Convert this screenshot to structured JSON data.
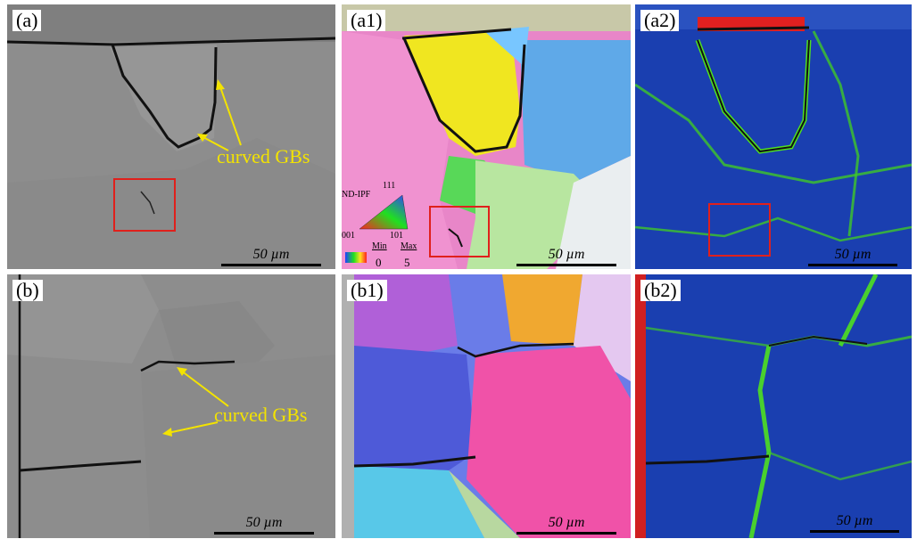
{
  "panels": [
    {
      "id": "a",
      "label": "(a)",
      "type": "sem",
      "scale_label": "50 µm",
      "annotation": "curved GBs",
      "has_box": true
    },
    {
      "id": "a1",
      "label": "(a1)",
      "type": "ipf",
      "scale_label": "50 µm",
      "has_box": true
    },
    {
      "id": "a2",
      "label": "(a2)",
      "type": "kam",
      "scale_label": "50 µm",
      "has_box": true
    },
    {
      "id": "b",
      "label": "(b)",
      "type": "sem",
      "scale_label": "50 µm",
      "annotation": "curved GBs"
    },
    {
      "id": "b1",
      "label": "(b1)",
      "type": "ipf",
      "scale_label": "50 µm"
    },
    {
      "id": "b2",
      "label": "(b2)",
      "type": "kam",
      "scale_label": "50 µm"
    }
  ],
  "legend": {
    "title": "ND-IPF",
    "corner_top": "111",
    "corner_left": "001",
    "corner_right": "101",
    "min_label": "Min",
    "max_label": "Max",
    "min_value": "0",
    "max_value": "5"
  },
  "colors": {
    "annotation": "#f3e300",
    "box": "#e0201c",
    "sem_bg": "#8d8d8d",
    "kam_bg": "#1a3fb0",
    "kam_high": "#4fe020"
  }
}
